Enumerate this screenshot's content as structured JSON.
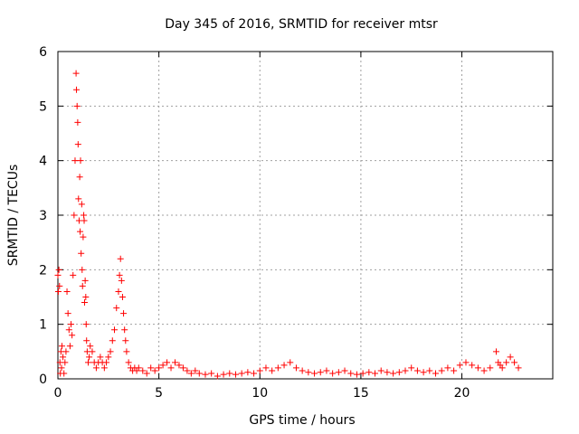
{
  "chart_data": {
    "type": "scatter",
    "title": "Day 345 of 2016, SRMTID for receiver mtsr",
    "xlabel": "GPS time / hours",
    "ylabel": "SRMTID / TECUs",
    "xlim": [
      0,
      24.5
    ],
    "ylim": [
      0,
      6
    ],
    "xticks": [
      0,
      5,
      10,
      15,
      20
    ],
    "yticks": [
      0,
      1,
      2,
      3,
      4,
      5,
      6
    ],
    "grid": true,
    "marker": "+",
    "color": "#ff0000",
    "series": [
      {
        "name": "SRMTID",
        "x": [
          0.0,
          0.02,
          0.05,
          0.08,
          0.1,
          0.12,
          0.15,
          0.18,
          0.2,
          0.25,
          0.3,
          0.35,
          0.4,
          0.45,
          0.5,
          0.55,
          0.6,
          0.65,
          0.7,
          0.75,
          0.8,
          0.85,
          0.9,
          0.92,
          0.95,
          0.98,
          1.0,
          1.02,
          1.05,
          1.08,
          1.1,
          1.12,
          1.15,
          1.18,
          1.2,
          1.22,
          1.25,
          1.28,
          1.3,
          1.32,
          1.35,
          1.38,
          1.4,
          1.42,
          1.45,
          1.5,
          1.55,
          1.6,
          1.7,
          1.8,
          1.9,
          2.0,
          2.1,
          2.2,
          2.3,
          2.4,
          2.5,
          2.6,
          2.7,
          2.8,
          2.9,
          3.0,
          3.05,
          3.1,
          3.15,
          3.2,
          3.25,
          3.3,
          3.35,
          3.4,
          3.5,
          3.6,
          3.7,
          3.8,
          3.9,
          4.0,
          4.2,
          4.4,
          4.6,
          4.8,
          5.0,
          5.2,
          5.4,
          5.6,
          5.8,
          6.0,
          6.2,
          6.4,
          6.6,
          6.8,
          7.0,
          7.3,
          7.6,
          7.9,
          8.2,
          8.5,
          8.8,
          9.1,
          9.4,
          9.7,
          10.0,
          10.3,
          10.6,
          10.9,
          11.2,
          11.5,
          11.8,
          12.1,
          12.4,
          12.7,
          13.0,
          13.3,
          13.6,
          13.9,
          14.2,
          14.5,
          14.8,
          15.1,
          15.4,
          15.7,
          16.0,
          16.3,
          16.6,
          16.9,
          17.2,
          17.5,
          17.8,
          18.1,
          18.4,
          18.7,
          19.0,
          19.3,
          19.6,
          19.9,
          20.2,
          20.5,
          20.8,
          21.1,
          21.4,
          21.7,
          21.8,
          21.9,
          22.0,
          22.2,
          22.4,
          22.6,
          22.8
        ],
        "y": [
          1.9,
          1.6,
          2.0,
          1.7,
          0.3,
          0.1,
          0.5,
          0.2,
          0.6,
          0.4,
          0.1,
          0.3,
          0.5,
          1.6,
          1.2,
          0.9,
          0.6,
          1.0,
          0.8,
          1.9,
          3.0,
          4.0,
          5.6,
          5.3,
          5.0,
          4.7,
          4.3,
          3.3,
          2.9,
          3.7,
          2.7,
          4.0,
          2.3,
          3.2,
          2.0,
          1.7,
          2.6,
          3.0,
          2.9,
          1.4,
          1.8,
          1.5,
          1.0,
          0.7,
          0.5,
          0.3,
          0.4,
          0.6,
          0.5,
          0.3,
          0.2,
          0.3,
          0.4,
          0.3,
          0.2,
          0.3,
          0.4,
          0.5,
          0.7,
          0.9,
          1.3,
          1.6,
          1.9,
          2.2,
          1.8,
          1.5,
          1.2,
          0.9,
          0.7,
          0.5,
          0.3,
          0.2,
          0.15,
          0.2,
          0.15,
          0.2,
          0.15,
          0.1,
          0.2,
          0.15,
          0.2,
          0.25,
          0.3,
          0.2,
          0.3,
          0.25,
          0.2,
          0.15,
          0.1,
          0.15,
          0.1,
          0.08,
          0.1,
          0.05,
          0.08,
          0.1,
          0.08,
          0.1,
          0.12,
          0.1,
          0.15,
          0.2,
          0.15,
          0.2,
          0.25,
          0.3,
          0.2,
          0.15,
          0.12,
          0.1,
          0.12,
          0.15,
          0.1,
          0.12,
          0.15,
          0.1,
          0.08,
          0.1,
          0.12,
          0.1,
          0.15,
          0.12,
          0.1,
          0.12,
          0.15,
          0.2,
          0.15,
          0.12,
          0.15,
          0.1,
          0.15,
          0.2,
          0.15,
          0.25,
          0.3,
          0.25,
          0.2,
          0.15,
          0.2,
          0.5,
          0.3,
          0.25,
          0.2,
          0.3,
          0.4,
          0.3,
          0.2
        ]
      }
    ]
  }
}
